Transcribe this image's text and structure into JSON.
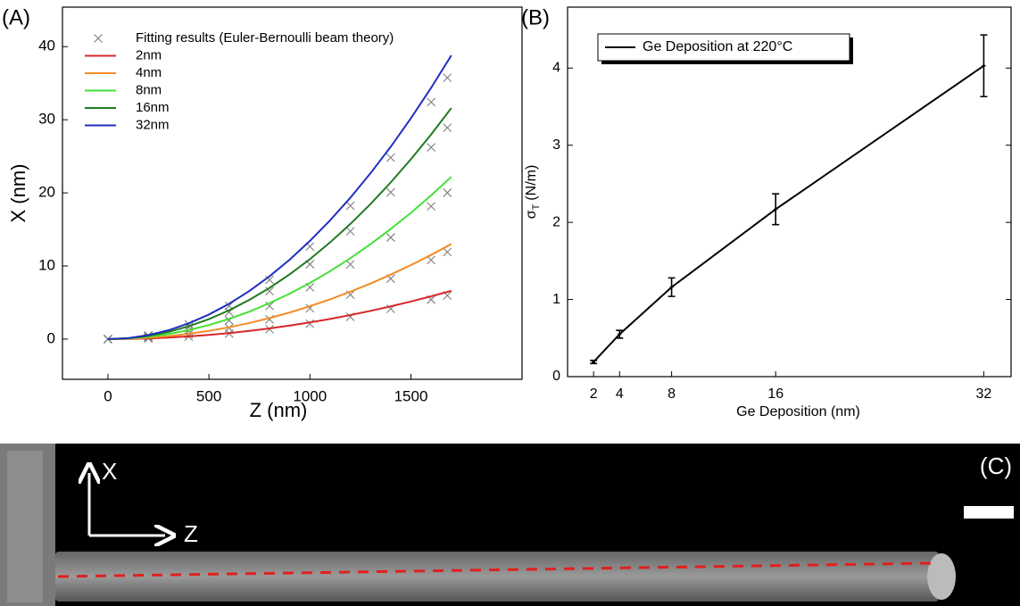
{
  "chart_data": [
    {
      "type": "line",
      "panel_label": "(A)",
      "x_label": "Z (nm)",
      "y_label": "X (nm)",
      "x": [
        0,
        100,
        200,
        300,
        400,
        500,
        600,
        700,
        800,
        900,
        1000,
        1100,
        1200,
        1300,
        1400,
        1500,
        1600,
        1700
      ],
      "xlim": [
        -225,
        2050
      ],
      "xticks": [
        0,
        500,
        1000,
        1500
      ],
      "ylim": [
        -5.5,
        45.4
      ],
      "yticks": [
        0,
        10,
        20,
        30,
        40
      ],
      "legend": "top-left",
      "series": [
        {
          "name": "Fitting results (Euler-Bernoulli beam theory)",
          "color": "#7f7f7f",
          "marker": "x",
          "x": [
            0,
            200,
            400,
            600,
            800,
            1000,
            1200,
            1400,
            1600,
            1680,
            0,
            200,
            400,
            600,
            800,
            1000,
            1200,
            1400,
            1600,
            1680,
            0,
            200,
            400,
            600,
            800,
            1000,
            1200,
            1400,
            1600,
            1680,
            0,
            200,
            400,
            600,
            800,
            1000,
            1200,
            1400,
            1600,
            1680,
            0,
            200,
            400,
            600,
            800,
            1000,
            1200,
            1400,
            1600,
            1680
          ],
          "values": [
            0,
            0.08,
            0.34,
            0.76,
            1.35,
            2.11,
            3.04,
            4.14,
            5.4,
            5.96,
            0,
            0.17,
            0.68,
            1.52,
            2.7,
            4.22,
            6.08,
            8.27,
            10.81,
            11.91,
            0,
            0.28,
            1.13,
            2.55,
            4.54,
            7.09,
            10.21,
            13.9,
            18.16,
            20.02,
            0,
            0.41,
            1.64,
            3.69,
            6.55,
            10.24,
            14.75,
            20.07,
            26.22,
            28.91,
            0,
            0.51,
            2.03,
            4.56,
            8.11,
            12.66,
            18.24,
            24.82,
            32.42,
            35.74
          ]
        },
        {
          "name": "2nm",
          "color": "#d62728",
          "values": [
            0,
            0.02,
            0.09,
            0.21,
            0.37,
            0.57,
            0.82,
            1.12,
            1.46,
            1.85,
            2.28,
            2.76,
            3.29,
            3.86,
            4.48,
            5.14,
            5.85,
            6.6
          ]
        },
        {
          "name": "4nm",
          "color": "#f28c28",
          "values": [
            0,
            0.05,
            0.18,
            0.4,
            0.72,
            1.12,
            1.62,
            2.2,
            2.88,
            3.64,
            4.5,
            5.44,
            6.48,
            7.6,
            8.82,
            10.12,
            11.52,
            13
          ]
        },
        {
          "name": "8nm",
          "color": "#44e036",
          "values": [
            0,
            0.08,
            0.31,
            0.69,
            1.23,
            1.92,
            2.77,
            3.76,
            4.92,
            6.22,
            7.68,
            9.29,
            11.06,
            12.98,
            15.06,
            17.28,
            19.66,
            22.2
          ]
        },
        {
          "name": "16nm",
          "color": "#1f7a1f",
          "values": [
            0,
            0.11,
            0.44,
            0.98,
            1.75,
            2.73,
            3.94,
            5.36,
            7.0,
            8.86,
            10.93,
            13.23,
            15.75,
            18.48,
            21.43,
            24.6,
            27.99,
            31.6
          ]
        },
        {
          "name": "32nm",
          "color": "#1f2fbf",
          "values": [
            0,
            0.13,
            0.54,
            1.21,
            2.15,
            3.36,
            4.83,
            6.58,
            8.59,
            10.87,
            13.43,
            16.25,
            19.33,
            22.69,
            26.31,
            30.21,
            34.37,
            38.8
          ]
        }
      ]
    },
    {
      "type": "line",
      "panel_label": "(B)",
      "x_label": "Ge Deposition (nm)",
      "y_label": {
        "symbol": "σ",
        "subscript": "T",
        "unit": "(N/m)"
      },
      "x": [
        2,
        4,
        8,
        16,
        32
      ],
      "xlim": [
        0,
        34.1
      ],
      "xticks": [
        2,
        4,
        8,
        16,
        32
      ],
      "ylim": [
        0,
        4.79
      ],
      "yticks": [
        0,
        1,
        2,
        3,
        4
      ],
      "legend": "top-left",
      "series": [
        {
          "name": "Ge Deposition at 220°C",
          "color": "#000000",
          "values": [
            0.19,
            0.55,
            1.16,
            2.17,
            4.03
          ],
          "errors": [
            0.02,
            0.05,
            0.12,
            0.2,
            0.4
          ]
        }
      ]
    }
  ],
  "panel_c": {
    "panel_label": "(C)",
    "axis_labels": [
      "X",
      "Z"
    ]
  }
}
